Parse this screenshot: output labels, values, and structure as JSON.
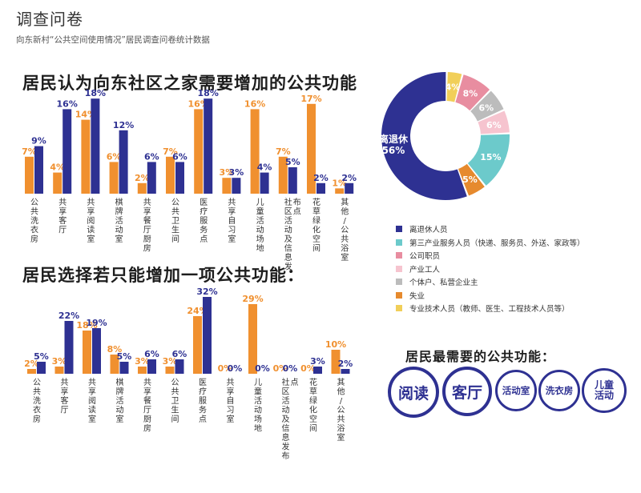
{
  "header": {
    "title": "调查问卷",
    "subtitle": "向东新村“公共空间使用情况”居民调查问卷统计数据"
  },
  "colors": {
    "orange": "#f0902f",
    "navy": "#2e3192",
    "teal": "#6ccacb",
    "pink": "#f2a6b6",
    "lightpink": "#f6c4cf",
    "gray": "#bcbcbc",
    "darkorange": "#e68a2e",
    "yellow": "#f1cf59",
    "need_circle": "#2e3192"
  },
  "chart1": {
    "title": "居民认为向东社区之家需要增加的公共功能"
  },
  "chart2": {
    "title": "居民选择若只能增加一项公共功能："
  },
  "chart_data": [
    {
      "type": "bar",
      "title": "居民认为向东社区之家需要增加的公共功能",
      "categories": [
        "公共洗衣房",
        "共享客厅",
        "共享阅读室",
        "棋牌活动室",
        "共享餐厅厨房",
        "公共卫生间",
        "医疗服务点",
        "共享自习室",
        "儿童活动场地",
        "社区活动及信息发布点",
        "花草绿化空间",
        "其他/公共浴室"
      ],
      "series": [
        {
          "color": "#f0902f",
          "values": [
            7,
            4,
            14,
            6,
            2,
            7,
            16,
            3,
            16,
            7,
            17,
            1
          ],
          "labels": [
            "7%",
            "4%",
            "14%",
            "6%",
            "2%",
            "7%",
            "16%",
            "3%",
            "16%",
            "7%",
            "17%",
            "1%"
          ]
        },
        {
          "color": "#2e3192",
          "values": [
            9,
            16,
            18,
            12,
            6,
            6,
            18,
            3,
            4,
            5,
            2,
            2
          ],
          "labels": [
            "9%",
            "16%",
            "18%",
            "12%",
            "6%",
            "6%",
            "18%",
            "3%",
            "4%",
            "5%",
            "2%",
            "2%"
          ]
        }
      ],
      "ylim": [
        0,
        18
      ]
    },
    {
      "type": "bar",
      "title": "居民选择若只能增加一项公共功能：",
      "categories": [
        "公共洗衣房",
        "共享客厅",
        "共享阅读室",
        "棋牌活动室",
        "共享餐厅厨房",
        "公共卫生间",
        "医疗服务点",
        "共享自习室",
        "儿童活动场地",
        "社区活动及信息发布点",
        "花草绿化空间",
        "其他/公共浴室"
      ],
      "series": [
        {
          "color": "#f0902f",
          "values": [
            2,
            3,
            18,
            8,
            3,
            3,
            24,
            0,
            29,
            0,
            0,
            10
          ],
          "labels": [
            "2%",
            "3%",
            "18%",
            "8%",
            "3%",
            "3%",
            "24%",
            "0%",
            "29%",
            "0%",
            "0%",
            "10%"
          ]
        },
        {
          "color": "#2e3192",
          "values": [
            5,
            22,
            19,
            5,
            6,
            6,
            32,
            0,
            0,
            0,
            3,
            2
          ],
          "labels": [
            "5%",
            "22%",
            "19%",
            "5%",
            "6%",
            "6%",
            "32%",
            "0%",
            "0%",
            "0%",
            "3%",
            "2%"
          ]
        }
      ],
      "ylim": [
        0,
        32
      ]
    },
    {
      "type": "pie",
      "donut": true,
      "slices": [
        {
          "label": "离退休人员",
          "value": 56,
          "text": "离退休\n56%",
          "color": "#2e3192"
        },
        {
          "label": "失业",
          "value": 5,
          "text": "5%",
          "color": "#e68a2e"
        },
        {
          "label": "第三产业服务人员（快递、服务员、外送、家政等）",
          "value": 15,
          "text": "15%",
          "color": "#6ccacb"
        },
        {
          "label": "产业工人",
          "value": 6,
          "text": "6%",
          "color": "#f6c4cf"
        },
        {
          "label": "个体户、私营企业主",
          "value": 6,
          "text": "6%",
          "color": "#bcbcbc"
        },
        {
          "label": "公司职员",
          "value": 8,
          "text": "8%",
          "color": "#e88da0"
        },
        {
          "label": "专业技术人员（教师、医生、工程技术人员等）",
          "value": 4,
          "text": "4%",
          "color": "#f1cf59"
        }
      ]
    }
  ],
  "legend": [
    {
      "label": "离退休人员",
      "color": "#2e3192"
    },
    {
      "label": "第三产业服务人员（快递、服务员、外送、家政等）",
      "color": "#6ccacb"
    },
    {
      "label": "公司职员",
      "color": "#e88da0"
    },
    {
      "label": "产业工人",
      "color": "#f6c4cf"
    },
    {
      "label": "个体户、私营企业主",
      "color": "#bcbcbc"
    },
    {
      "label": "失业",
      "color": "#e68a2e"
    },
    {
      "label": "专业技术人员（教师、医生、工程技术人员等）",
      "color": "#f1cf59"
    }
  ],
  "needs": {
    "title": "居民最需要的公共功能：",
    "items": [
      "阅读",
      "客厅",
      "活动室",
      "洗衣房",
      "儿童活动"
    ]
  }
}
